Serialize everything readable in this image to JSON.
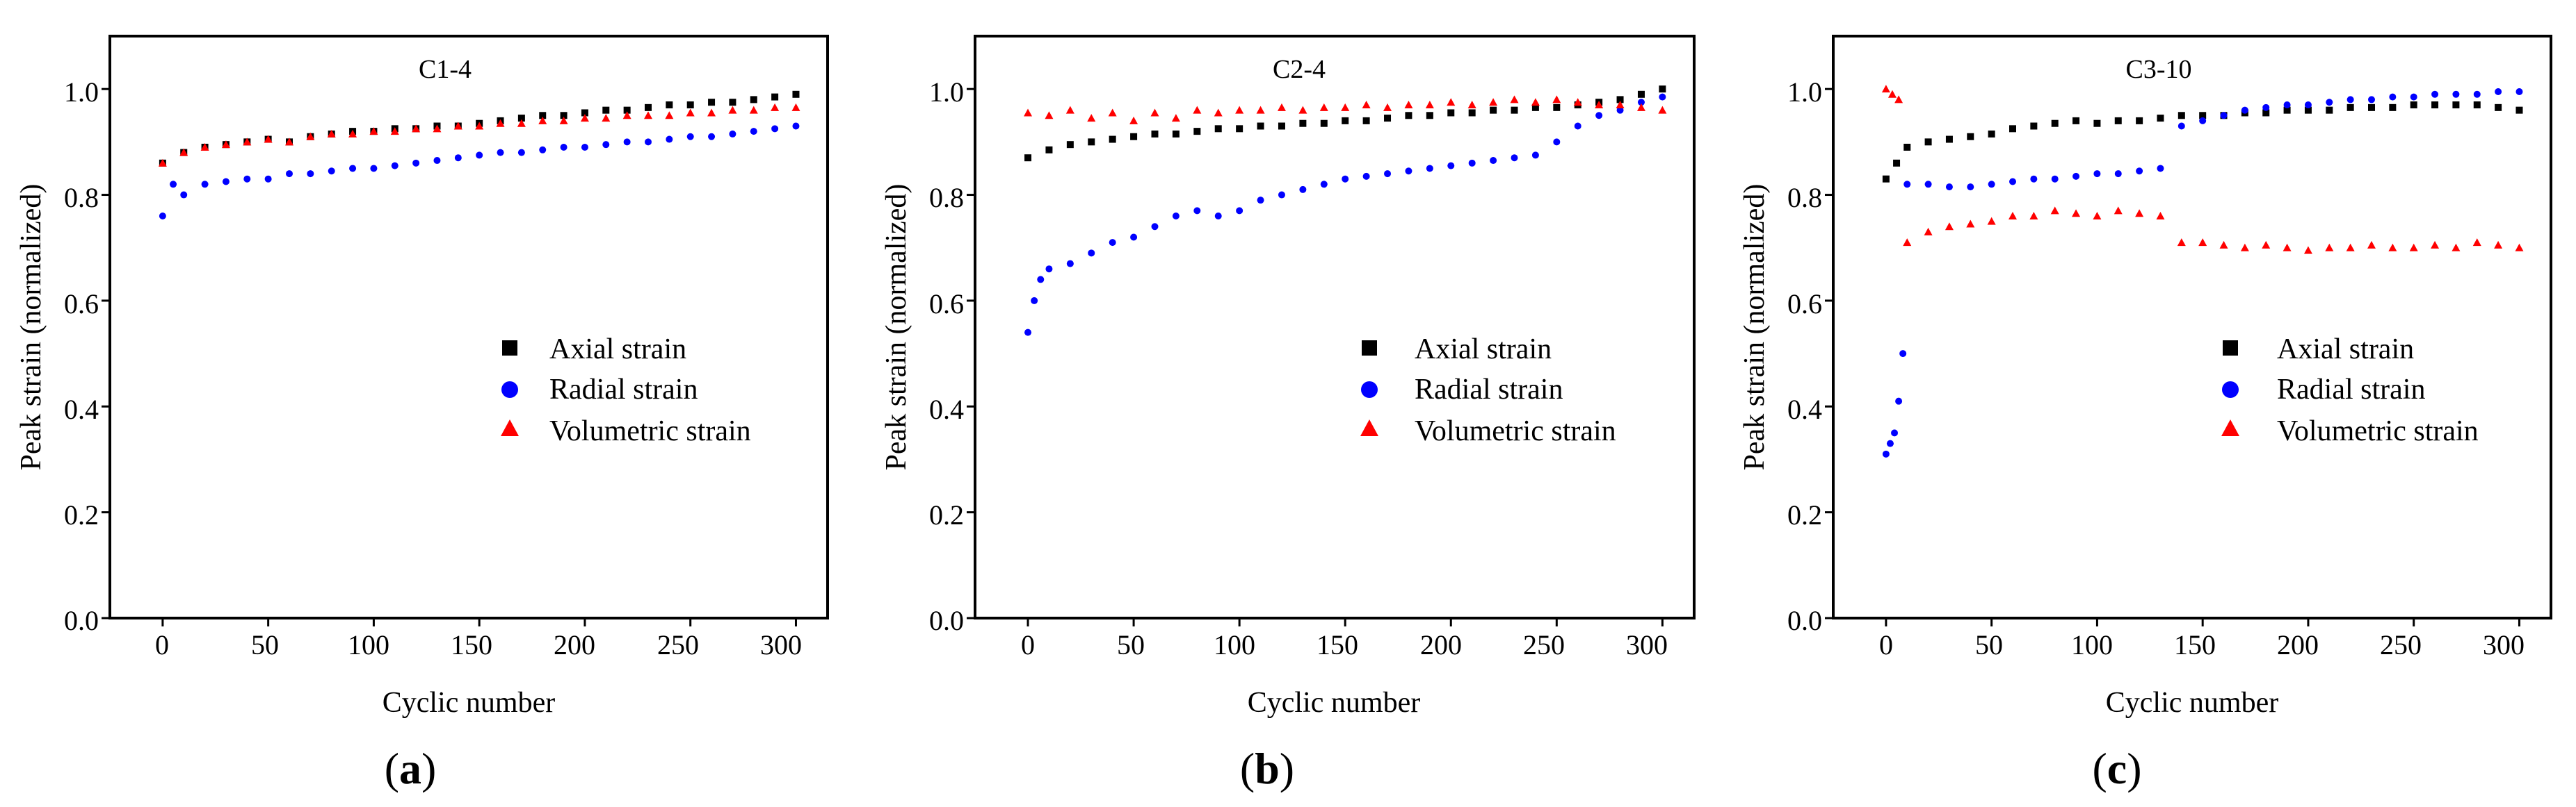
{
  "legend_labels": [
    "Axial strain",
    "Radial strain",
    "Volumetric strain"
  ],
  "colors": {
    "axial": "#000000",
    "radial": "#0000ff",
    "volumetric": "#ff0000"
  },
  "chart_data": [
    {
      "type": "scatter",
      "panel_label": "a",
      "title": "C1-4",
      "xlabel": "Cyclic number",
      "ylabel": "Peak strain (normalized)",
      "xlim": [
        -25,
        315
      ],
      "ylim": [
        0.0,
        1.1
      ],
      "xticks": [
        "0",
        "50",
        "100",
        "150",
        "200",
        "250",
        "300"
      ],
      "yticks": [
        "0.0",
        "0.2",
        "0.4",
        "0.6",
        "0.8",
        "1.0"
      ],
      "legend_position": "center-right",
      "series": [
        {
          "name": "Axial strain",
          "marker": "square",
          "x": [
            0,
            10,
            20,
            30,
            40,
            50,
            60,
            70,
            80,
            90,
            100,
            110,
            120,
            130,
            140,
            150,
            160,
            170,
            180,
            190,
            200,
            210,
            220,
            230,
            240,
            250,
            260,
            270,
            280,
            290,
            300
          ],
          "y": [
            0.86,
            0.88,
            0.89,
            0.895,
            0.9,
            0.905,
            0.9,
            0.91,
            0.915,
            0.92,
            0.92,
            0.925,
            0.925,
            0.93,
            0.93,
            0.935,
            0.94,
            0.945,
            0.95,
            0.95,
            0.955,
            0.96,
            0.96,
            0.965,
            0.97,
            0.97,
            0.975,
            0.975,
            0.98,
            0.985,
            0.99
          ]
        },
        {
          "name": "Radial strain",
          "marker": "circle",
          "x": [
            0,
            5,
            10,
            20,
            30,
            40,
            50,
            60,
            70,
            80,
            90,
            100,
            110,
            120,
            130,
            140,
            150,
            160,
            170,
            180,
            190,
            200,
            210,
            220,
            230,
            240,
            250,
            260,
            270,
            280,
            290,
            300
          ],
          "y": [
            0.76,
            0.82,
            0.8,
            0.82,
            0.825,
            0.83,
            0.83,
            0.84,
            0.84,
            0.845,
            0.85,
            0.85,
            0.855,
            0.86,
            0.865,
            0.87,
            0.875,
            0.88,
            0.88,
            0.885,
            0.89,
            0.89,
            0.895,
            0.9,
            0.9,
            0.905,
            0.91,
            0.91,
            0.915,
            0.92,
            0.925,
            0.93
          ]
        },
        {
          "name": "Volumetric strain",
          "marker": "triangle",
          "x": [
            0,
            10,
            20,
            30,
            40,
            50,
            60,
            70,
            80,
            90,
            100,
            110,
            120,
            130,
            140,
            150,
            160,
            170,
            180,
            190,
            200,
            210,
            220,
            230,
            240,
            250,
            260,
            270,
            280,
            290,
            300
          ],
          "y": [
            0.86,
            0.88,
            0.89,
            0.895,
            0.9,
            0.905,
            0.9,
            0.91,
            0.915,
            0.915,
            0.92,
            0.92,
            0.925,
            0.925,
            0.93,
            0.93,
            0.935,
            0.935,
            0.94,
            0.94,
            0.945,
            0.945,
            0.95,
            0.95,
            0.95,
            0.955,
            0.955,
            0.96,
            0.96,
            0.965,
            0.965
          ]
        }
      ]
    },
    {
      "type": "scatter",
      "panel_label": "b",
      "title": "C2-4",
      "xlabel": "Cyclic number",
      "ylabel": "Peak strain (normalized)",
      "xlim": [
        -25,
        315
      ],
      "ylim": [
        0.0,
        1.1
      ],
      "xticks": [
        "0",
        "50",
        "100",
        "150",
        "200",
        "250",
        "300"
      ],
      "yticks": [
        "0.0",
        "0.2",
        "0.4",
        "0.6",
        "0.8",
        "1.0"
      ],
      "legend_position": "center-right",
      "series": [
        {
          "name": "Axial strain",
          "marker": "square",
          "x": [
            0,
            10,
            20,
            30,
            40,
            50,
            60,
            70,
            80,
            90,
            100,
            110,
            120,
            130,
            140,
            150,
            160,
            170,
            180,
            190,
            200,
            210,
            220,
            230,
            240,
            250,
            260,
            270,
            280,
            290,
            300
          ],
          "y": [
            0.87,
            0.885,
            0.895,
            0.9,
            0.905,
            0.91,
            0.915,
            0.915,
            0.92,
            0.925,
            0.925,
            0.93,
            0.93,
            0.935,
            0.935,
            0.94,
            0.94,
            0.945,
            0.95,
            0.95,
            0.955,
            0.955,
            0.96,
            0.96,
            0.965,
            0.965,
            0.97,
            0.975,
            0.98,
            0.99,
            1.0
          ]
        },
        {
          "name": "Radial strain",
          "marker": "circle",
          "x": [
            0,
            3,
            6,
            10,
            20,
            30,
            40,
            50,
            60,
            70,
            80,
            90,
            100,
            110,
            120,
            130,
            140,
            150,
            160,
            170,
            180,
            190,
            200,
            210,
            220,
            230,
            240,
            250,
            260,
            270,
            280,
            290,
            300
          ],
          "y": [
            0.54,
            0.6,
            0.64,
            0.66,
            0.67,
            0.69,
            0.71,
            0.72,
            0.74,
            0.76,
            0.77,
            0.76,
            0.77,
            0.79,
            0.8,
            0.81,
            0.82,
            0.83,
            0.835,
            0.84,
            0.845,
            0.85,
            0.855,
            0.86,
            0.865,
            0.87,
            0.875,
            0.9,
            0.93,
            0.95,
            0.96,
            0.975,
            0.985
          ]
        },
        {
          "name": "Volumetric strain",
          "marker": "triangle",
          "x": [
            0,
            10,
            20,
            30,
            40,
            50,
            60,
            70,
            80,
            90,
            100,
            110,
            120,
            130,
            140,
            150,
            160,
            170,
            180,
            190,
            200,
            210,
            220,
            230,
            240,
            250,
            260,
            270,
            280,
            290,
            300
          ],
          "y": [
            0.955,
            0.95,
            0.96,
            0.945,
            0.955,
            0.94,
            0.955,
            0.945,
            0.96,
            0.955,
            0.96,
            0.96,
            0.965,
            0.96,
            0.965,
            0.965,
            0.97,
            0.965,
            0.97,
            0.97,
            0.975,
            0.97,
            0.975,
            0.98,
            0.975,
            0.98,
            0.975,
            0.97,
            0.97,
            0.965,
            0.96
          ]
        }
      ]
    },
    {
      "type": "scatter",
      "panel_label": "c",
      "title": "C3-10",
      "xlabel": "Cyclic number",
      "ylabel": "Peak strain (normalized)",
      "xlim": [
        -25,
        315
      ],
      "ylim": [
        0.0,
        1.1
      ],
      "xticks": [
        "0",
        "50",
        "100",
        "150",
        "200",
        "250",
        "300"
      ],
      "yticks": [
        "0.0",
        "0.2",
        "0.4",
        "0.6",
        "0.8",
        "1.0"
      ],
      "legend_position": "center-right",
      "series": [
        {
          "name": "Axial strain",
          "marker": "square",
          "x": [
            0,
            5,
            10,
            20,
            30,
            40,
            50,
            60,
            70,
            80,
            90,
            100,
            110,
            120,
            130,
            140,
            150,
            160,
            170,
            180,
            190,
            200,
            210,
            220,
            230,
            240,
            250,
            260,
            270,
            280,
            290,
            300
          ],
          "y": [
            0.83,
            0.86,
            0.89,
            0.9,
            0.905,
            0.91,
            0.915,
            0.925,
            0.93,
            0.935,
            0.94,
            0.935,
            0.94,
            0.94,
            0.945,
            0.95,
            0.95,
            0.95,
            0.955,
            0.955,
            0.96,
            0.96,
            0.96,
            0.965,
            0.965,
            0.965,
            0.97,
            0.97,
            0.97,
            0.97,
            0.965,
            0.96
          ]
        },
        {
          "name": "Radial strain",
          "marker": "circle",
          "x": [
            0,
            2,
            4,
            6,
            8,
            10,
            20,
            30,
            40,
            50,
            60,
            70,
            80,
            90,
            100,
            110,
            120,
            130,
            140,
            150,
            160,
            170,
            180,
            190,
            200,
            210,
            220,
            230,
            240,
            250,
            260,
            270,
            280,
            290,
            300
          ],
          "y": [
            0.31,
            0.33,
            0.35,
            0.41,
            0.5,
            0.82,
            0.82,
            0.815,
            0.815,
            0.82,
            0.825,
            0.83,
            0.83,
            0.835,
            0.84,
            0.84,
            0.845,
            0.85,
            0.93,
            0.94,
            0.95,
            0.96,
            0.965,
            0.97,
            0.97,
            0.975,
            0.98,
            0.98,
            0.985,
            0.985,
            0.99,
            0.99,
            0.99,
            0.995,
            0.995
          ]
        },
        {
          "name": "Volumetric strain",
          "marker": "triangle",
          "x": [
            0,
            3,
            6,
            10,
            20,
            30,
            40,
            50,
            60,
            70,
            80,
            90,
            100,
            110,
            120,
            130,
            140,
            150,
            160,
            170,
            180,
            190,
            200,
            210,
            220,
            230,
            240,
            250,
            260,
            270,
            280,
            290,
            300
          ],
          "y": [
            1.0,
            0.99,
            0.98,
            0.71,
            0.73,
            0.74,
            0.745,
            0.75,
            0.76,
            0.76,
            0.77,
            0.765,
            0.76,
            0.77,
            0.765,
            0.76,
            0.71,
            0.71,
            0.705,
            0.7,
            0.705,
            0.7,
            0.695,
            0.7,
            0.7,
            0.705,
            0.7,
            0.7,
            0.705,
            0.7,
            0.71,
            0.705,
            0.7
          ]
        }
      ]
    }
  ]
}
